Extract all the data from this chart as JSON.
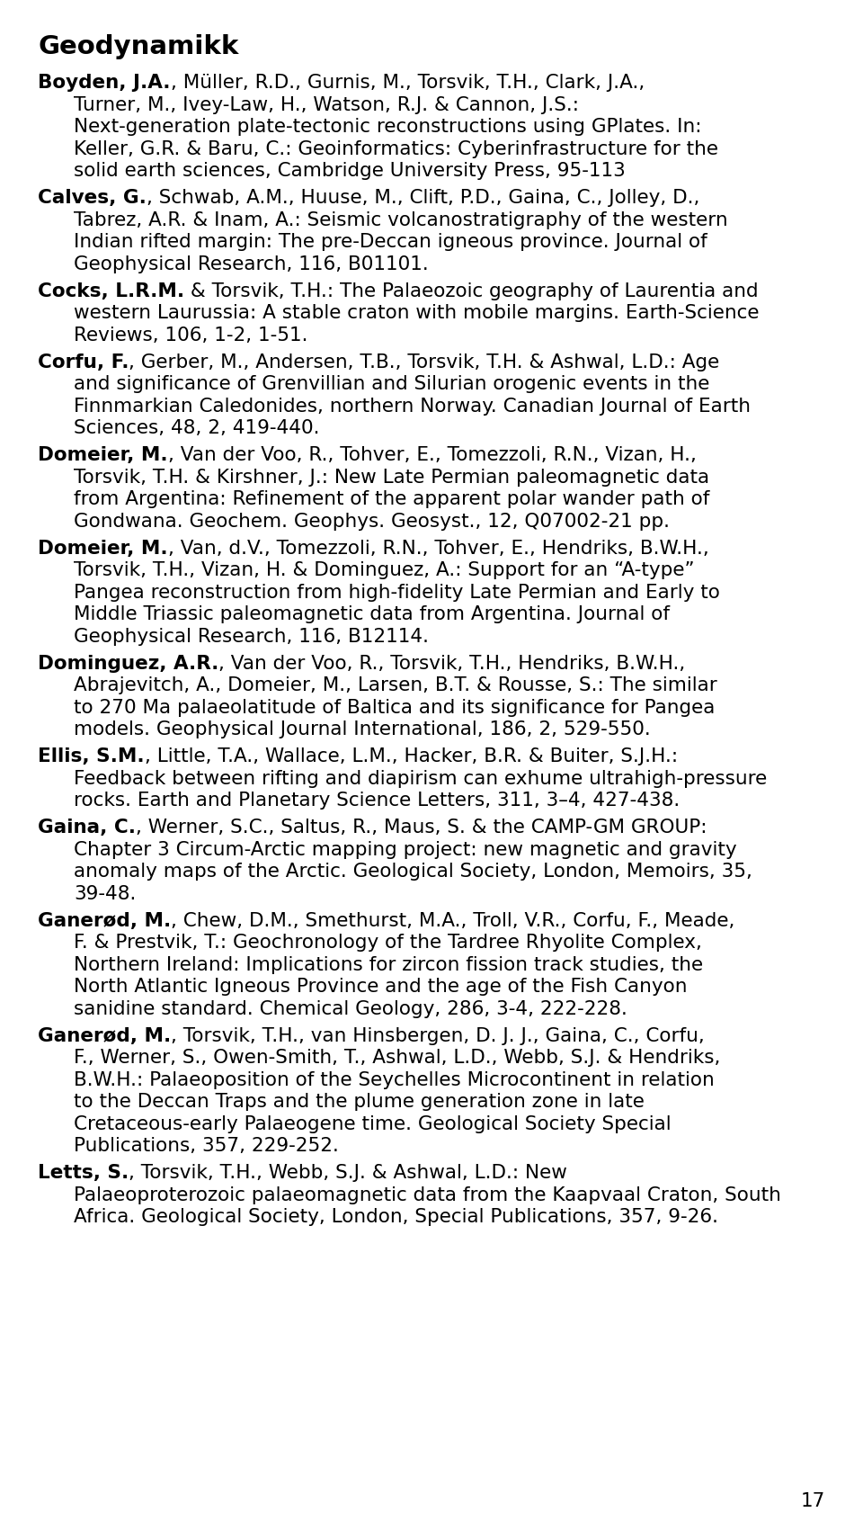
{
  "title": "Geodynamikk",
  "page_number": "17",
  "background_color": "#ffffff",
  "text_color": "#000000",
  "font_size": 15.5,
  "title_font_size": 21,
  "references": [
    {
      "bold_part": "Boyden, J.A.",
      "normal_part": ", Müller, R.D., Gurnis, M., Torsvik, T.H., Clark, J.A., Turner, M., Ivey-Law, H., Watson, R.J. & Cannon, J.S.: Next-generation plate-tectonic reconstructions using GPlates. In: Keller, G.R. & Baru, C.: Geoinformatics: Cyberinfrastructure for the solid earth sciences, Cambridge University Press, 95-113"
    },
    {
      "bold_part": "Calves, G.",
      "normal_part": ", Schwab, A.M., Huuse, M., Clift, P.D., Gaina, C., Jolley, D., Tabrez, A.R. & Inam, A.: Seismic volcanostratigraphy of the western Indian rifted margin: The pre-Deccan igneous province. Journal of Geophysical Research, 116, B01101."
    },
    {
      "bold_part": "Cocks, L.R.M.",
      "normal_part": " & Torsvik, T.H.: The Palaeozoic geography of Laurentia and western Laurussia: A stable craton with mobile margins. Earth-Science Reviews, 106, 1-2, 1-51."
    },
    {
      "bold_part": "Corfu, F.",
      "normal_part": ", Gerber, M., Andersen, T.B., Torsvik, T.H. & Ashwal, L.D.: Age and significance of Grenvillian and Silurian orogenic events in the Finnmarkian Caledonides, northern Norway. Canadian Journal of Earth Sciences, 48, 2, 419-440."
    },
    {
      "bold_part": "Domeier, M.",
      "normal_part": ", Van der Voo, R., Tohver, E., Tomezzoli, R.N., Vizan, H., Torsvik, T.H. & Kirshner, J.: New Late Permian paleomagnetic data from Argentina: Refinement of the apparent polar wander path of Gondwana. Geochem. Geophys. Geosyst., 12, Q07002-21 pp."
    },
    {
      "bold_part": "Domeier, M.",
      "normal_part": ", Van, d.V., Tomezzoli, R.N., Tohver, E., Hendriks, B.W.H., Torsvik, T.H., Vizan, H. & Dominguez, A.: Support for an “A-type” Pangea reconstruction from high-fidelity Late Permian and Early to Middle Triassic paleomagnetic data from Argentina. Journal of Geophysical Research, 116, B12114."
    },
    {
      "bold_part": "Dominguez, A.R.",
      "normal_part": ", Van der Voo, R., Torsvik, T.H., Hendriks, B.W.H., Abrajevitch, A., Domeier, M., Larsen, B.T. & Rousse, S.: The similar to 270 Ma palaeolatitude of Baltica and its significance for Pangea models. Geophysical Journal International, 186, 2, 529-550."
    },
    {
      "bold_part": "Ellis, S.M.",
      "normal_part": ", Little, T.A., Wallace, L.M., Hacker, B.R. & Buiter, S.J.H.: Feedback between rifting and diapirism can exhume ultrahigh-pressure rocks. Earth and Planetary Science Letters, 311, 3–4, 427-438."
    },
    {
      "bold_part": "Gaina, C.",
      "normal_part": ", Werner, S.C., Saltus, R., Maus, S. & the CAMP-GM GROUP: Chapter 3 Circum-Arctic mapping project: new magnetic and gravity anomaly maps of the Arctic. Geological Society, London, Memoirs, 35, 39-48."
    },
    {
      "bold_part": "Ganerød, M.",
      "normal_part": ", Chew, D.M., Smethurst, M.A., Troll, V.R., Corfu, F., Meade, F. & Prestvik, T.: Geochronology of the Tardree Rhyolite Complex, Northern Ireland: Implications for zircon fission track studies, the North Atlantic Igneous Province and the age of the Fish Canyon sanidine standard. Chemical Geology, 286, 3-4, 222-228."
    },
    {
      "bold_part": "Ganerød, M.",
      "normal_part": ", Torsvik, T.H., van Hinsbergen, D. J. J., Gaina, C., Corfu, F., Werner, S., Owen-Smith, T., Ashwal, L.D., Webb, S.J. & Hendriks, B.W.H.: Palaeoposition of the Seychelles Microcontinent in relation to the Deccan Traps and the plume generation zone in late Cretaceous-early Palaeogene time. Geological Society Special Publications, 357, 229-252."
    },
    {
      "bold_part": "Letts, S.",
      "normal_part": ", Torsvik, T.H., Webb, S.J. & Ashwal, L.D.: New Palaeoproterozoic palaeomagnetic data from the Kaapvaal Craton, South Africa. Geological Society, London, Special Publications, 357, 9-26."
    }
  ]
}
